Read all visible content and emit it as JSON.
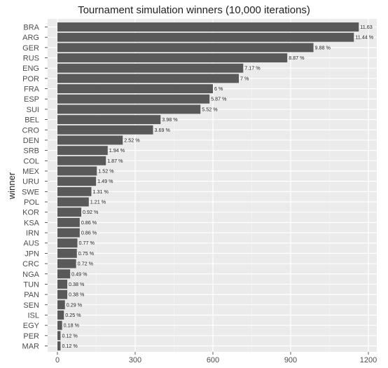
{
  "chart_data": {
    "type": "bar",
    "orientation": "horizontal",
    "title": "Tournament simulation winners (10,000 iterations)",
    "xlabel": "",
    "ylabel": "winner",
    "xlim": [
      0,
      1200
    ],
    "x_ticks": [
      0,
      300,
      600,
      900,
      1200
    ],
    "grid": true,
    "legend": "none",
    "bar_color": "#595959",
    "panel_color": "#ebebeb",
    "categories": [
      "BRA",
      "ARG",
      "GER",
      "RUS",
      "ENG",
      "POR",
      "FRA",
      "ESP",
      "SUI",
      "BEL",
      "CRO",
      "DEN",
      "SRB",
      "COL",
      "MEX",
      "URU",
      "SWE",
      "POL",
      "KOR",
      "KSA",
      "IRN",
      "AUS",
      "JPN",
      "CRC",
      "NGA",
      "TUN",
      "PAN",
      "SEN",
      "ISL",
      "EGY",
      "PER",
      "MAR"
    ],
    "values": [
      1163,
      1144,
      988,
      887,
      717,
      700,
      600,
      587,
      552,
      398,
      369,
      252,
      194,
      187,
      152,
      149,
      131,
      121,
      92,
      86,
      86,
      77,
      75,
      72,
      49,
      38,
      38,
      29,
      25,
      18,
      12,
      12
    ],
    "labels": [
      "11.63",
      "11.44 %",
      "9.88 %",
      "8.87 %",
      "7.17 %",
      "7 %",
      "6 %",
      "5.87 %",
      "5.52 %",
      "3.98 %",
      "3.69 %",
      "2.52 %",
      "1.94 %",
      "1.87 %",
      "1.52 %",
      "1.49 %",
      "1.31 %",
      "1.21 %",
      "0.92 %",
      "0.86 %",
      "0.86 %",
      "0.77 %",
      "0.75 %",
      "0.72 %",
      "0.49 %",
      "0.38 %",
      "0.38 %",
      "0.29 %",
      "0.25 %",
      "0.18 %",
      "0.12 %",
      "0.12 %"
    ]
  }
}
